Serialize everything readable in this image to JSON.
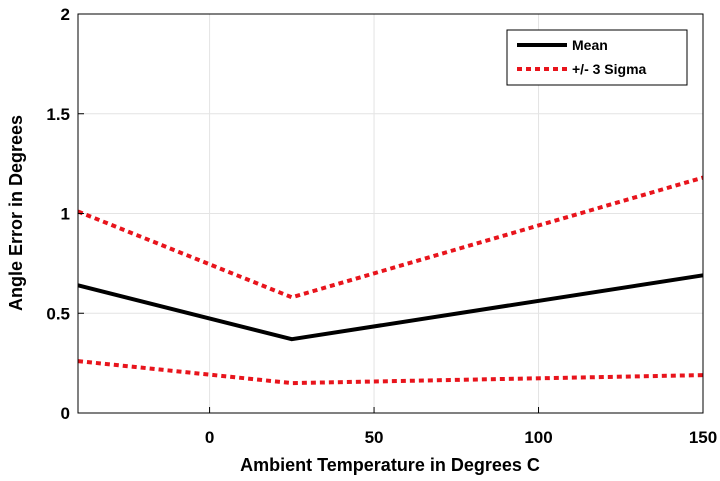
{
  "chart_data": {
    "type": "line",
    "xlabel": "Ambient Temperature in Degrees C",
    "ylabel": "Angle Error in Degrees",
    "xlim": [
      -40,
      150
    ],
    "ylim": [
      0,
      2
    ],
    "xticks": [
      0,
      50,
      100,
      150
    ],
    "xtick_labels": [
      "0",
      "50",
      "100",
      "150"
    ],
    "yticks": [
      0,
      0.5,
      1,
      1.5,
      2
    ],
    "ytick_labels": [
      "0",
      "0.5",
      "1",
      "1.5",
      "2"
    ],
    "grid": true,
    "legend_position": "top-right",
    "x": [
      -40,
      25,
      150
    ],
    "series": [
      {
        "name": "Mean",
        "values": [
          0.64,
          0.37,
          0.69
        ],
        "color": "#000000",
        "style": "solid"
      },
      {
        "name": "+/- 3 Sigma",
        "values": [
          1.01,
          0.58,
          1.18
        ],
        "color": "#e8141c",
        "style": "dotted",
        "legend": true
      },
      {
        "name": "+/- 3 Sigma",
        "values": [
          0.26,
          0.15,
          0.19
        ],
        "color": "#e8141c",
        "style": "dotted",
        "legend": false
      }
    ]
  }
}
